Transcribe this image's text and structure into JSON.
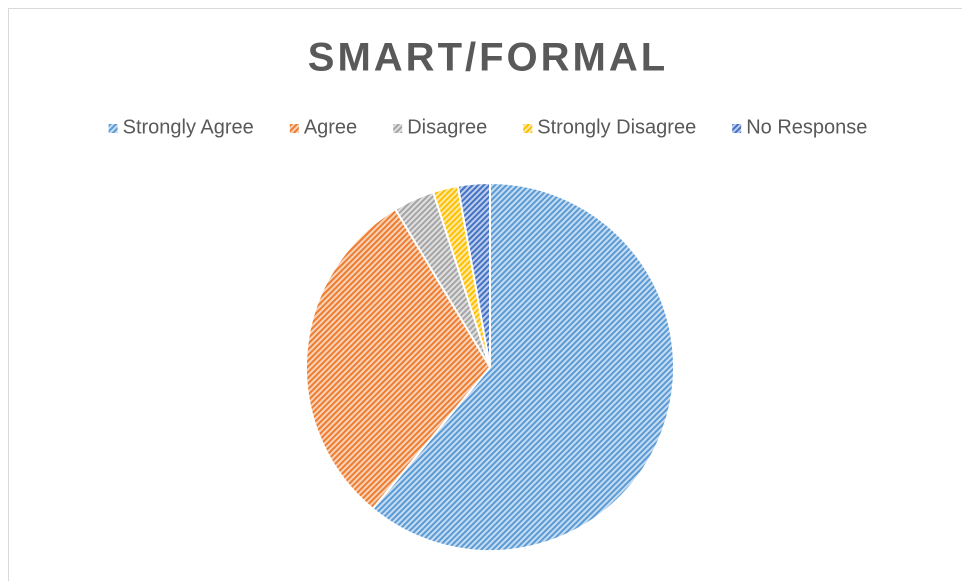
{
  "chart_data": {
    "type": "pie",
    "title": "SMART/FORMAL",
    "categories": [
      "Strongly Agree",
      "Agree",
      "Disagree",
      "Strongly Disagree",
      "No Response"
    ],
    "values": [
      61,
      30.4,
      3.6,
      2.2,
      2.8
    ],
    "colors": [
      "#5b9bd5",
      "#ed7d31",
      "#a5a5a5",
      "#ffc000",
      "#4472c4"
    ],
    "legend": "top"
  }
}
